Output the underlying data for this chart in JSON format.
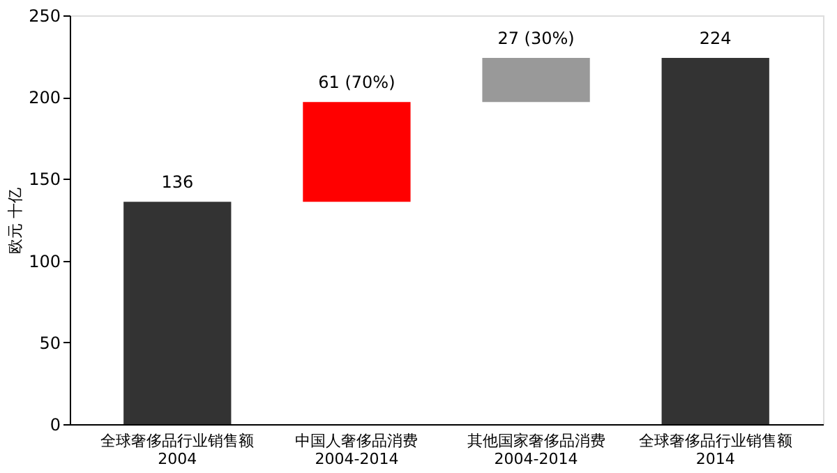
{
  "chart_data": {
    "type": "bar",
    "categories": [
      "全球奢侈品行业销售额\n2004",
      "中国人奢侈品消费\n2004-2014",
      "其他国家奢侈品消费\n2004-2014",
      "全球奢侈品行业销售额\n2014"
    ],
    "values": [
      136,
      61,
      27,
      224
    ],
    "base": [
      0,
      136,
      197,
      0
    ],
    "colors": [
      "#333333",
      "#ff0000",
      "#999999",
      "#333333"
    ],
    "value_labels": [
      "136",
      "61 (70%)",
      "27 (30%)",
      "224"
    ],
    "ylabel": "欧元 十亿",
    "ylim": [
      0,
      250
    ],
    "yticks": [
      0,
      50,
      100,
      150,
      200,
      250
    ],
    "grid": false
  }
}
